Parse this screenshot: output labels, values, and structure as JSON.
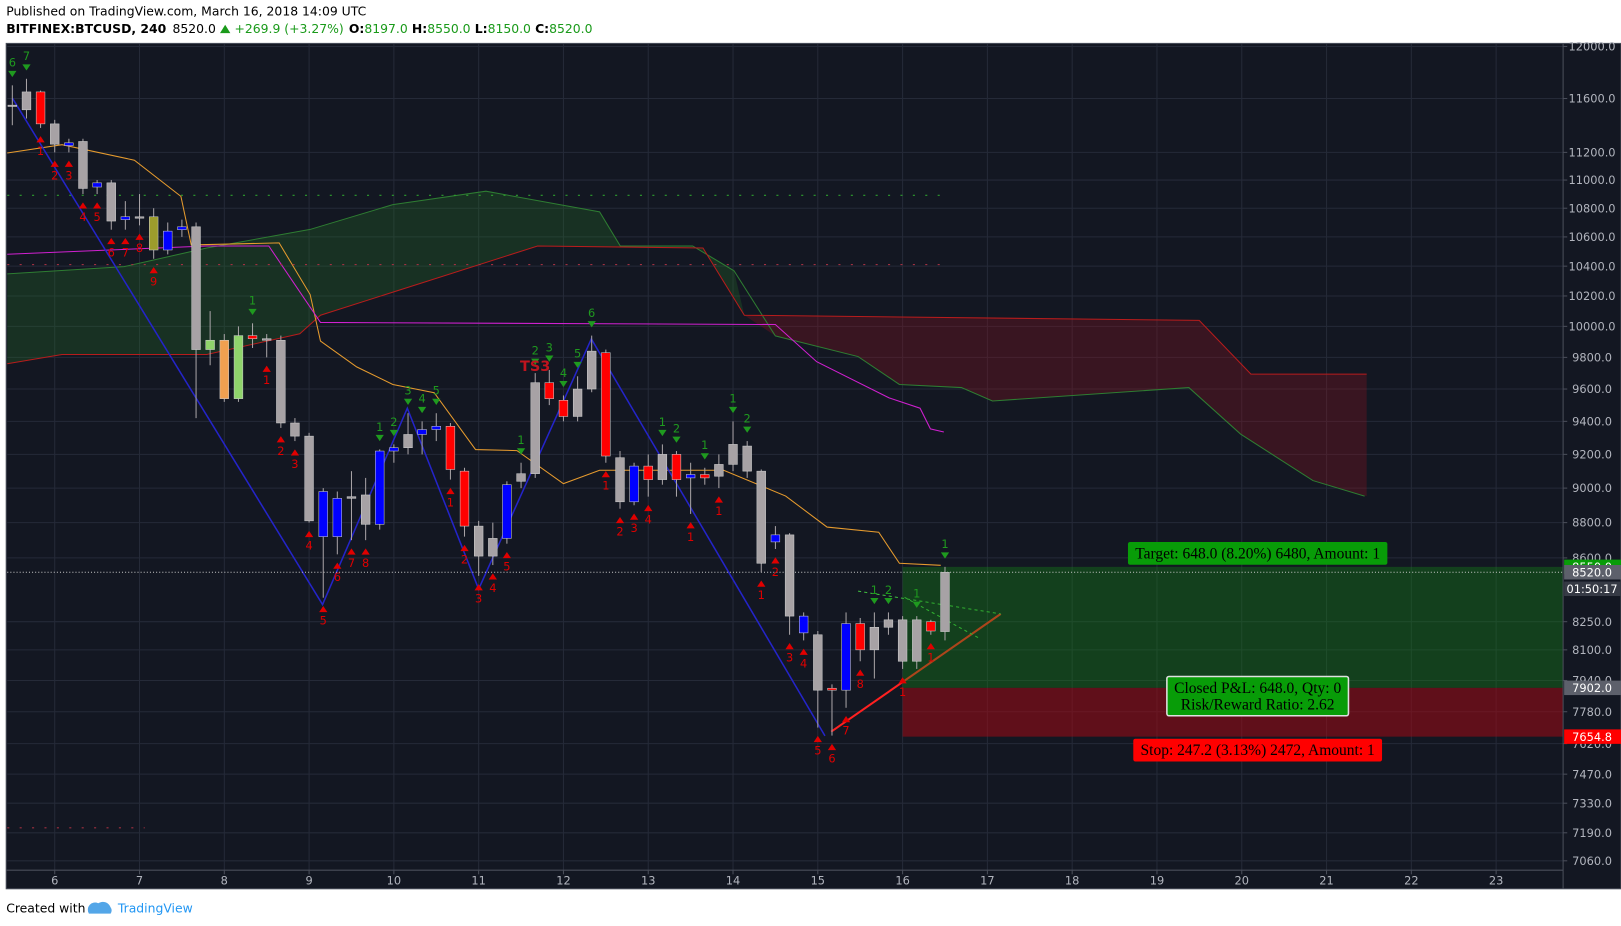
{
  "header": {
    "published": "Published on TradingView.com, March 16, 2018 14:09 UTC",
    "symbol": "BITFINEX:BTCUSD, 240",
    "price": "8520.0",
    "change": "+269.9 (+3.27%)",
    "ohlc": [
      {
        "key": "O:",
        "value": "8197.0"
      },
      {
        "key": "H:",
        "value": "8550.0"
      },
      {
        "key": "L:",
        "value": "8150.0"
      },
      {
        "key": "C:",
        "value": "8520.0"
      }
    ]
  },
  "footer": {
    "created": "Created with",
    "brand": "TradingView"
  },
  "chart_data": {
    "type": "candlestick",
    "x": [
      5.5,
      5.667,
      5.833,
      6,
      6.167,
      6.333,
      6.5,
      6.667,
      6.833,
      7,
      7.167,
      7.333,
      7.5,
      7.667,
      7.833,
      8,
      8.167,
      8.333,
      8.5,
      8.667,
      8.833,
      9,
      9.167,
      9.333,
      9.5,
      9.667,
      9.833,
      10,
      10.167,
      10.333,
      10.5,
      10.667,
      10.833,
      11,
      11.167,
      11.333,
      11.5,
      11.667,
      11.833,
      12,
      12.167,
      12.333,
      12.5,
      12.667,
      12.833,
      13,
      13.167,
      13.333,
      13.5,
      13.667,
      13.833,
      14,
      14.167,
      14.333,
      14.5,
      14.667,
      14.833,
      15,
      15.167,
      15.333,
      15.5,
      15.667,
      15.833,
      16,
      16.167,
      16.333,
      16.5
    ],
    "open": [
      11540,
      11515,
      11650,
      11410,
      11270,
      11280,
      10950,
      10980,
      10720,
      10740,
      10740,
      10510,
      10650,
      10670,
      9850,
      9910,
      9540,
      9940,
      9920,
      9910,
      9390,
      9310,
      8720,
      8720,
      8950,
      8960,
      8790,
      9220,
      9240,
      9320,
      9350,
      9370,
      9100,
      8780,
      8610,
      8710,
      9040,
      9085,
      9640,
      9530,
      9430,
      9600,
      9830,
      9180,
      8920,
      9130,
      9050,
      9200,
      9060,
      9080,
      9070,
      9140,
      9250,
      9100,
      8690,
      8730,
      8190,
      8180,
      7900,
      7890,
      8240,
      8100,
      8220,
      8260,
      8040,
      8250,
      8197
    ],
    "high": [
      11700,
      11750,
      11660,
      11440,
      11300,
      11300,
      11000,
      11000,
      10850,
      10900,
      10800,
      10700,
      10720,
      10700,
      10100,
      9950,
      10000,
      10020,
      9950,
      9940,
      9420,
      9330,
      9000,
      8980,
      9100,
      9060,
      9230,
      9260,
      9450,
      9400,
      9450,
      9390,
      9120,
      8810,
      8800,
      9040,
      9150,
      9700,
      9720,
      9560,
      9680,
      9940,
      9850,
      9220,
      9150,
      9200,
      9260,
      9220,
      9150,
      9120,
      9200,
      9400,
      9280,
      9110,
      8780,
      8740,
      8300,
      8200,
      7920,
      8300,
      8270,
      8300,
      8300,
      8280,
      8280,
      8260,
      8550
    ],
    "low": [
      11400,
      11450,
      11380,
      11200,
      11200,
      10900,
      10900,
      10650,
      10650,
      10680,
      10450,
      10480,
      10600,
      9420,
      9750,
      9520,
      9520,
      9860,
      9800,
      9360,
      9280,
      8800,
      8380,
      8620,
      8700,
      8700,
      8760,
      9150,
      9200,
      9200,
      9280,
      9050,
      8720,
      8500,
      8560,
      8680,
      9000,
      9060,
      9500,
      9400,
      9400,
      9580,
      9150,
      8880,
      8900,
      8950,
      9020,
      8950,
      8850,
      9020,
      9000,
      9100,
      9060,
      8520,
      8650,
      8180,
      8150,
      7700,
      7660,
      7800,
      8040,
      7950,
      8180,
      8000,
      8000,
      8180,
      8150
    ],
    "close": [
      11550,
      11650,
      11410,
      11260,
      11250,
      10940,
      10980,
      10710,
      10740,
      10730,
      10510,
      10640,
      10670,
      9850,
      9910,
      9540,
      9940,
      9920,
      9910,
      9390,
      9310,
      8810,
      8980,
      8940,
      8940,
      8790,
      9220,
      9240,
      9320,
      9350,
      9370,
      9110,
      8780,
      8610,
      8710,
      9020,
      9085,
      9640,
      9540,
      9430,
      9600,
      9840,
      9190,
      8920,
      9130,
      9050,
      9200,
      9050,
      9080,
      9060,
      9140,
      9260,
      9100,
      8570,
      8730,
      8280,
      8280,
      7890,
      7890,
      8240,
      8100,
      8220,
      8260,
      8040,
      8260,
      8200,
      8520
    ],
    "colors": [
      "#a7a2a5",
      "#a7a2a5",
      "#ff0000",
      "#a7a2a5",
      "#0000ff",
      "#a7a2a5",
      "#0000ff",
      "#a7a2a5",
      "#0000ff",
      "#a7a2a5",
      "#9c9c2c",
      "#0000ff",
      "#0000ff",
      "#a7a2a5",
      "#8fd46b",
      "#f0a050",
      "#8fd46b",
      "#ff0000",
      "#a7a2a5",
      "#a7a2a5",
      "#a7a2a5",
      "#a7a2a5",
      "#0000ff",
      "#0000ff",
      "#a7a2a5",
      "#a7a2a5",
      "#0000ff",
      "#0000ff",
      "#a7a2a5",
      "#0000ff",
      "#0000ff",
      "#ff0000",
      "#ff0000",
      "#a7a2a5",
      "#a7a2a5",
      "#0000ff",
      "#a7a2a5",
      "#a7a2a5",
      "#ff0000",
      "#ff0000",
      "#a7a2a5",
      "#a7a2a5",
      "#ff0000",
      "#a7a2a5",
      "#0000ff",
      "#ff0000",
      "#a7a2a5",
      "#ff0000",
      "#0000ff",
      "#ff0000",
      "#a7a2a5",
      "#a7a2a5",
      "#a7a2a5",
      "#a7a2a5",
      "#0000ff",
      "#a7a2a5",
      "#0000ff",
      "#a7a2a5",
      "#ff0000",
      "#0000ff",
      "#ff0000",
      "#a7a2a5",
      "#a7a2a5",
      "#a7a2a5",
      "#a7a2a5",
      "#ff0000",
      "#a7a2a5"
    ],
    "wick_color": "#a7a2a5",
    "xlim": [
      5.44,
      23.79
    ],
    "ylim": [
      7017,
      12024
    ],
    "log_scale": true,
    "grid": true,
    "xticks": [
      6,
      7,
      8,
      9,
      10,
      11,
      12,
      13,
      14,
      15,
      16,
      17,
      18,
      19,
      20,
      21,
      22,
      23
    ],
    "yticks": [
      {
        "value": 12000,
        "label": "12000.0"
      },
      {
        "value": 11600,
        "label": "11600.0"
      },
      {
        "value": 11200,
        "label": "11200.0"
      },
      {
        "value": 11000,
        "label": "11000.0"
      },
      {
        "value": 10800,
        "label": "10800.0"
      },
      {
        "value": 10600,
        "label": "10600.0"
      },
      {
        "value": 10400,
        "label": "10400.0"
      },
      {
        "value": 10200,
        "label": "10200.0"
      },
      {
        "value": 10000,
        "label": "10000.0"
      },
      {
        "value": 9800,
        "label": "9800.0"
      },
      {
        "value": 9600,
        "label": "9600.0"
      },
      {
        "value": 9400,
        "label": "9400.0"
      },
      {
        "value": 9200,
        "label": "9200.0"
      },
      {
        "value": 9000,
        "label": "9000.0"
      },
      {
        "value": 8800,
        "label": "8800.0"
      },
      {
        "value": 8600,
        "label": "8600.0"
      },
      {
        "value": 8250,
        "label": "8250.0"
      },
      {
        "value": 8100,
        "label": "8100.0"
      },
      {
        "value": 7940,
        "label": "7940.0"
      },
      {
        "value": 7780,
        "label": "7780.0"
      },
      {
        "value": 7620,
        "label": "7620.0"
      },
      {
        "value": 7470,
        "label": "7470.0"
      },
      {
        "value": 7330,
        "label": "7330.0"
      },
      {
        "value": 7190,
        "label": "7190.0"
      },
      {
        "value": 7060,
        "label": "7060.0"
      }
    ],
    "td_up_color": "#1f9a1f",
    "td_down_color": "#e00000",
    "td_up": [
      {
        "x": 5.5,
        "label": "6"
      },
      {
        "x": 5.667,
        "label": "7"
      },
      {
        "x": 8.333,
        "label": "1"
      },
      {
        "x": 9.833,
        "label": "1"
      },
      {
        "x": 10,
        "label": "2"
      },
      {
        "x": 10.167,
        "label": "3"
      },
      {
        "x": 10.333,
        "label": "4"
      },
      {
        "x": 10.5,
        "label": "5"
      },
      {
        "x": 11.5,
        "label": "1"
      },
      {
        "x": 11.667,
        "label": "2"
      },
      {
        "x": 11.833,
        "label": "3"
      },
      {
        "x": 12,
        "label": "4"
      },
      {
        "x": 12.167,
        "label": "5"
      },
      {
        "x": 12.333,
        "label": "6"
      },
      {
        "x": 13.167,
        "label": "1"
      },
      {
        "x": 13.333,
        "label": "2"
      },
      {
        "x": 13.667,
        "label": "1"
      },
      {
        "x": 14,
        "label": "1"
      },
      {
        "x": 14.167,
        "label": "2"
      },
      {
        "x": 15.667,
        "label": "1"
      },
      {
        "x": 15.833,
        "label": "2"
      },
      {
        "x": 16.167,
        "label": "1"
      },
      {
        "x": 16.5,
        "label": "1"
      }
    ],
    "td_down": [
      {
        "x": 5.833,
        "label": "1"
      },
      {
        "x": 6,
        "label": "2"
      },
      {
        "x": 6.167,
        "label": "3"
      },
      {
        "x": 6.333,
        "label": "4"
      },
      {
        "x": 6.5,
        "label": "5"
      },
      {
        "x": 6.667,
        "label": "6"
      },
      {
        "x": 6.833,
        "label": "7"
      },
      {
        "x": 7,
        "label": "8"
      },
      {
        "x": 7.167,
        "label": "9"
      },
      {
        "x": 8.5,
        "label": "1"
      },
      {
        "x": 8.667,
        "label": "2"
      },
      {
        "x": 8.833,
        "label": "3"
      },
      {
        "x": 9,
        "label": "4"
      },
      {
        "x": 9.167,
        "label": "5"
      },
      {
        "x": 9.333,
        "label": "6"
      },
      {
        "x": 9.5,
        "label": "7"
      },
      {
        "x": 9.667,
        "label": "8"
      },
      {
        "x": 10.667,
        "label": "1"
      },
      {
        "x": 10.833,
        "label": "2"
      },
      {
        "x": 11,
        "label": "3"
      },
      {
        "x": 11.167,
        "label": "4"
      },
      {
        "x": 11.333,
        "label": "5"
      },
      {
        "x": 12.5,
        "label": "1"
      },
      {
        "x": 12.667,
        "label": "2"
      },
      {
        "x": 12.833,
        "label": "3"
      },
      {
        "x": 13,
        "label": "4"
      },
      {
        "x": 13.5,
        "label": "1"
      },
      {
        "x": 13.833,
        "label": "1"
      },
      {
        "x": 14.333,
        "label": "1"
      },
      {
        "x": 14.5,
        "label": "2"
      },
      {
        "x": 14.667,
        "label": "3"
      },
      {
        "x": 14.833,
        "label": "4"
      },
      {
        "x": 15,
        "label": "5"
      },
      {
        "x": 15.167,
        "label": "6"
      },
      {
        "x": 15.333,
        "label": "7"
      },
      {
        "x": 15.5,
        "label": "8"
      },
      {
        "x": 16,
        "label": "1"
      },
      {
        "x": 16.333,
        "label": "1"
      }
    ],
    "annotation": {
      "x": 11.667,
      "text": "TS3",
      "color": "#c0141e"
    },
    "position": {
      "start_x": 16,
      "target": {
        "value": 8550,
        "label": "8550.0",
        "color": "#089c08"
      },
      "entry": {
        "value": 7902,
        "label": "7902.0",
        "color": "#5d606b"
      },
      "stop": {
        "value": 7654.8,
        "label": "7654.8",
        "color": "#ff0000"
      },
      "target_text": "Target: 648.0 (8.20%) 6480, Amount: 1",
      "result_text": [
        "Closed P&L: 648.0, Qty: 0",
        "Risk/Reward Ratio: 2.62"
      ],
      "stop_text": "Stop: 247.2 (3.13%) 2472, Amount: 1"
    },
    "last_price": {
      "value": 8520,
      "label": "8520.0",
      "color": "#5d606b"
    },
    "countdown": "01:50:17"
  }
}
